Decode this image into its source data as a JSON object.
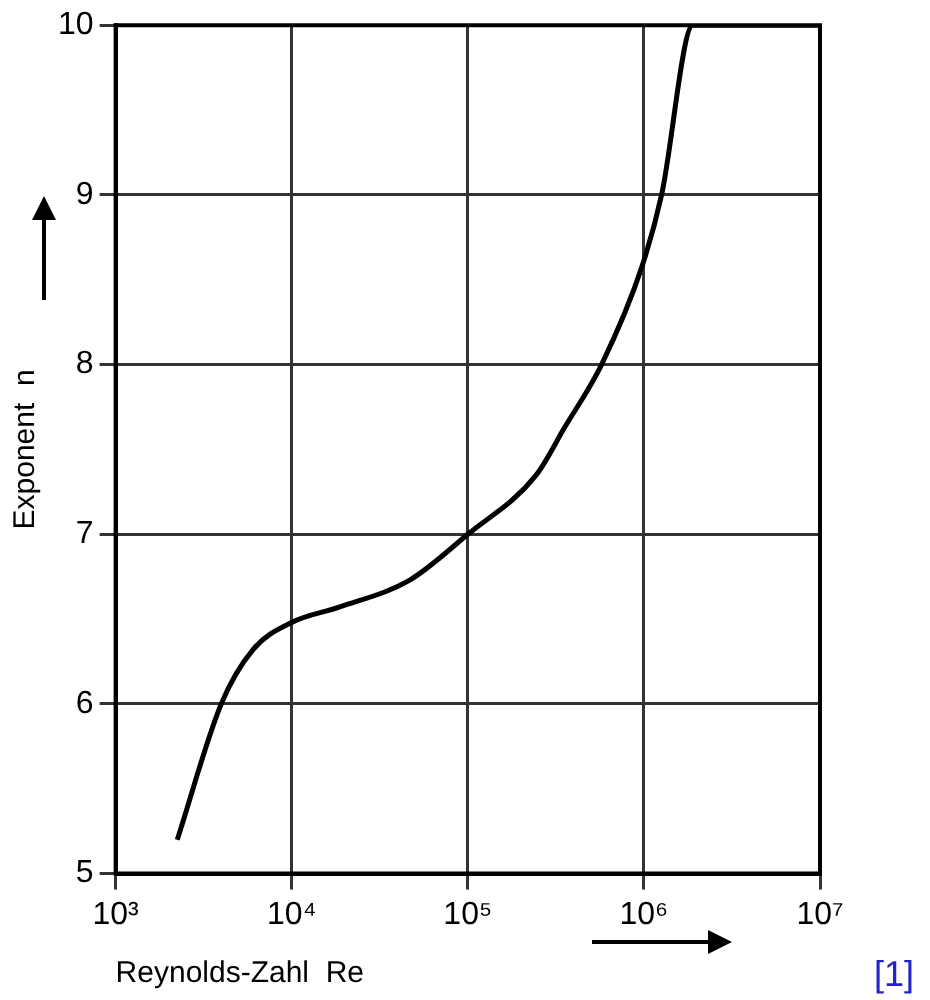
{
  "chart_data": {
    "type": "line",
    "xlabel": "Reynolds-Zahl  Re",
    "ylabel": "Exponent  n",
    "x": [
      2240,
      3980,
      6030,
      10000,
      18600,
      46800,
      100000,
      245000,
      355000,
      575000,
      977000,
      1260000,
      1900000,
      10000000
    ],
    "series": [
      {
        "color": "#000000",
        "values": [
          5.2,
          6.0,
          6.32,
          6.48,
          6.57,
          6.73,
          7.0,
          7.35,
          7.63,
          8.0,
          8.58,
          9.0,
          10,
          10
        ]
      }
    ],
    "log": "x",
    "xlim": [
      1000,
      10000000
    ],
    "xticks": [
      {
        "value": 1000,
        "label": "10³"
      },
      {
        "value": 10000,
        "label": "10⁴"
      },
      {
        "value": 100000,
        "label": "10⁵"
      },
      {
        "value": 1000000,
        "label": "10⁶"
      },
      {
        "value": 10000000,
        "label": "10⁷"
      }
    ],
    "ylim": [
      5,
      10
    ],
    "yticks": [
      5,
      6,
      7,
      8,
      9,
      10
    ],
    "grid": true,
    "legend": false,
    "marker": "none",
    "line_style": "solid",
    "annotations": [
      "[1]"
    ]
  }
}
